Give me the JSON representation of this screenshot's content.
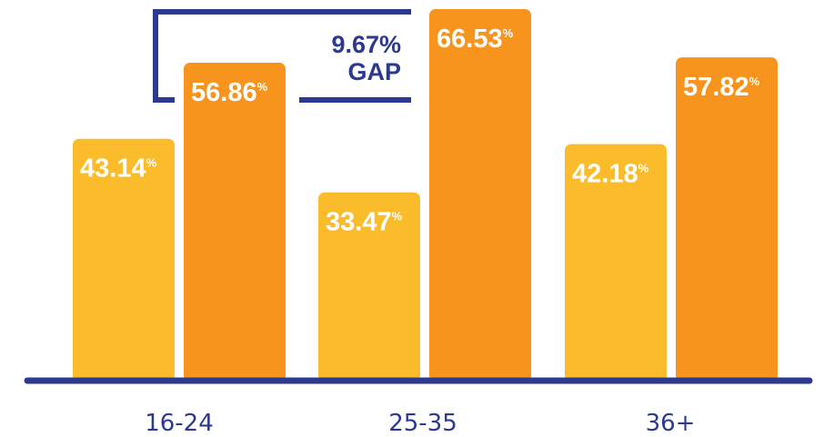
{
  "chart_data": {
    "type": "bar",
    "categories": [
      "16-24",
      "25-35",
      "36+"
    ],
    "series": [
      {
        "values": [
          43.14,
          33.47,
          42.18
        ]
      },
      {
        "values": [
          56.86,
          66.53,
          57.82
        ]
      }
    ],
    "value_suffix": "%",
    "ylim": [
      0,
      70
    ],
    "grid": false,
    "legend": "none",
    "annotation": {
      "line1": "9.67%",
      "line2": "GAP"
    }
  },
  "colors": {
    "series_1": "#fbbc2b",
    "series_2": "#f7941d",
    "axis": "#2b3990"
  }
}
